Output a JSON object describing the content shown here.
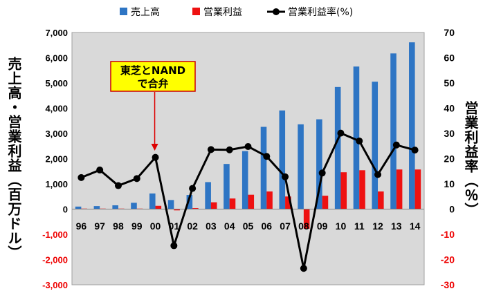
{
  "chart_data": {
    "type": "bar+line",
    "categories": [
      "96",
      "97",
      "98",
      "99",
      "00",
      "01",
      "02",
      "03",
      "04",
      "05",
      "06",
      "07",
      "08",
      "09",
      "10",
      "11",
      "12",
      "13",
      "14"
    ],
    "series": [
      {
        "name": "売上高",
        "type": "bar",
        "axis": "left",
        "color": "#2e75c4",
        "values": [
          100,
          120,
          150,
          250,
          620,
          360,
          560,
          1070,
          1790,
          2300,
          3260,
          3910,
          3360,
          3560,
          4840,
          5650,
          5050,
          6170,
          6610
        ]
      },
      {
        "name": "営業利益",
        "type": "bar",
        "axis": "left",
        "color": "#ee1111",
        "values": [
          20,
          20,
          20,
          20,
          130,
          -50,
          40,
          270,
          420,
          570,
          700,
          500,
          -780,
          530,
          1460,
          1540,
          700,
          1570,
          1570
        ]
      },
      {
        "name": "営業利益率(%)",
        "type": "line",
        "axis": "right",
        "color": "#000000",
        "values": [
          12.5,
          15.5,
          9.3,
          12.1,
          20.5,
          -14.5,
          8.2,
          23.6,
          23.5,
          24.8,
          20.9,
          12.8,
          -23.5,
          14.3,
          30.1,
          27.0,
          13.7,
          25.4,
          23.4
        ]
      }
    ],
    "y_left": {
      "title": "売上高・営業利益（百万ドル）",
      "ylim": [
        -3000,
        7000
      ],
      "ticks": [
        "7,000",
        "6,000",
        "5,000",
        "4,000",
        "3,000",
        "2,000",
        "1,000",
        "0",
        "-1,000",
        "-2,000",
        "-3,000"
      ],
      "tick_values": [
        7000,
        6000,
        5000,
        4000,
        3000,
        2000,
        1000,
        0,
        -1000,
        -2000,
        -3000
      ]
    },
    "y_right": {
      "title": "営業利益率（％）",
      "ylim": [
        -30,
        70
      ],
      "ticks": [
        "70",
        "60",
        "50",
        "40",
        "30",
        "20",
        "10",
        "0",
        "-10",
        "-20",
        "-30"
      ],
      "tick_values": [
        70,
        60,
        50,
        40,
        30,
        20,
        10,
        0,
        -10,
        -20,
        -30
      ]
    },
    "legend": {
      "position": "top",
      "entries": [
        {
          "label": "売上高",
          "color": "#2e75c4",
          "marker": "square"
        },
        {
          "label": "営業利益",
          "color": "#ee1111",
          "marker": "square"
        },
        {
          "label": "営業利益率(%)",
          "color": "#000000",
          "marker": "line-dot"
        }
      ]
    },
    "annotation": {
      "lines": [
        "東芝とNAND",
        "で合弁"
      ],
      "target_category": "00",
      "box_color": "#ffff00",
      "border_color": "#cc0000",
      "arrow_color": "#dd0000"
    },
    "negative_tick_color": "#ee0000",
    "plot_background": "#d9d9d9",
    "grid": false
  }
}
